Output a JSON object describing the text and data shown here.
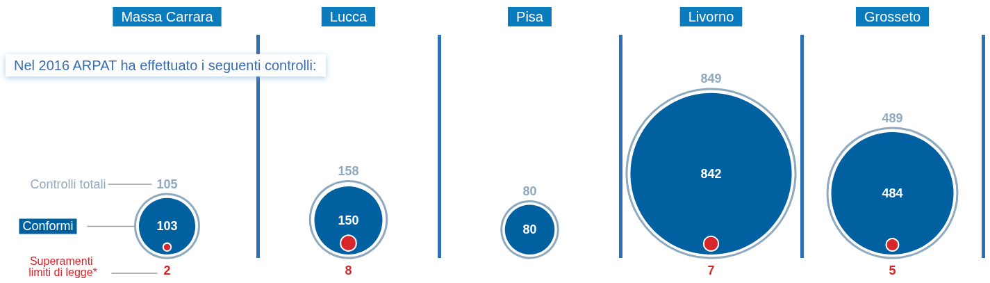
{
  "chart_data": {
    "type": "other",
    "title": "Nel 2016 ARPAT ha effettuato i seguenti controlli:",
    "categories": [
      "Massa Carrara",
      "Lucca",
      "Pisa",
      "Livorno",
      "Grosseto"
    ],
    "legend": "left",
    "data_labels": true,
    "series": [
      {
        "name": "Controlli totali",
        "color": "#8fa9bf",
        "values": [
          105,
          158,
          80,
          849,
          489
        ]
      },
      {
        "name": "Conformi",
        "color": "#0060a0",
        "values": [
          103,
          150,
          80,
          842,
          484
        ]
      },
      {
        "name": "Superamenti limiti di legge*",
        "color": "#d7262b",
        "values": [
          2,
          8,
          null,
          7,
          5
        ]
      }
    ]
  }
}
